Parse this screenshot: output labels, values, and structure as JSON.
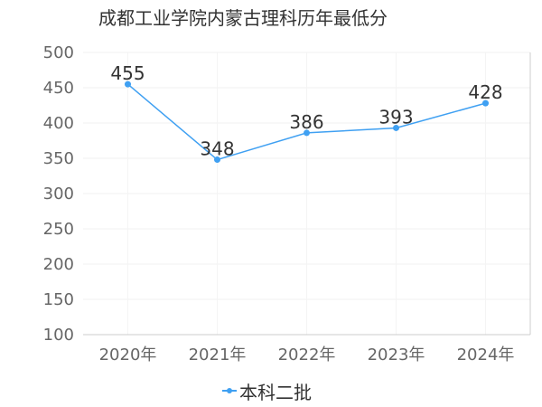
{
  "chart_data": {
    "type": "line",
    "title": "成都工业学院内蒙古理科历年最低分",
    "categories": [
      "2020年",
      "2021年",
      "2022年",
      "2023年",
      "2024年"
    ],
    "series": [
      {
        "name": "本科二批",
        "values": [
          455,
          348,
          386,
          393,
          428
        ],
        "color": "#3fa0f2"
      }
    ],
    "yticks": [
      "100",
      "150",
      "200",
      "250",
      "300",
      "350",
      "400",
      "450",
      "500"
    ],
    "ylim": [
      100,
      500
    ],
    "grid": true,
    "legend": "bottom"
  }
}
